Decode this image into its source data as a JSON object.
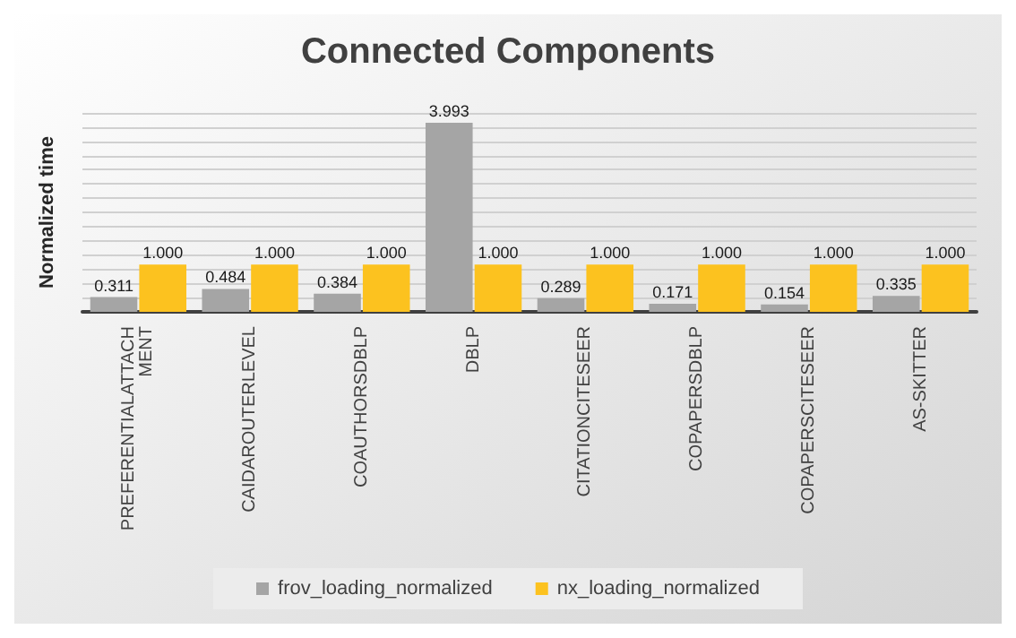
{
  "chart_data": {
    "type": "bar",
    "title": "Connected Components",
    "ylabel": "Normalized time",
    "categories": [
      "PREFERENTIALATTACHMENT",
      "CAIDAROUTERLEVEL",
      "COAUTHORSDBLP",
      "DBLP",
      "CITATIONCITESEER",
      "COPAPERSDBLP",
      "COPAPERSCITESEER",
      "AS-SKITTER"
    ],
    "series": [
      {
        "name": "frov_loading_normalized",
        "color": "#a5a5a5",
        "values": [
          0.311,
          0.484,
          0.384,
          3.993,
          0.289,
          0.171,
          0.154,
          0.335
        ]
      },
      {
        "name": "nx_loading_normalized",
        "color": "#fcc21f",
        "values": [
          1.0,
          1.0,
          1.0,
          1.0,
          1.0,
          1.0,
          1.0,
          1.0
        ],
        "value_labels": [
          "1.000",
          "1.000",
          "1.000",
          "1.000",
          "1.000",
          "1.000",
          "1.000",
          "1.000"
        ]
      }
    ],
    "data_labels": true,
    "grid": "y",
    "legend": "bottom",
    "tick_labels": "x"
  }
}
